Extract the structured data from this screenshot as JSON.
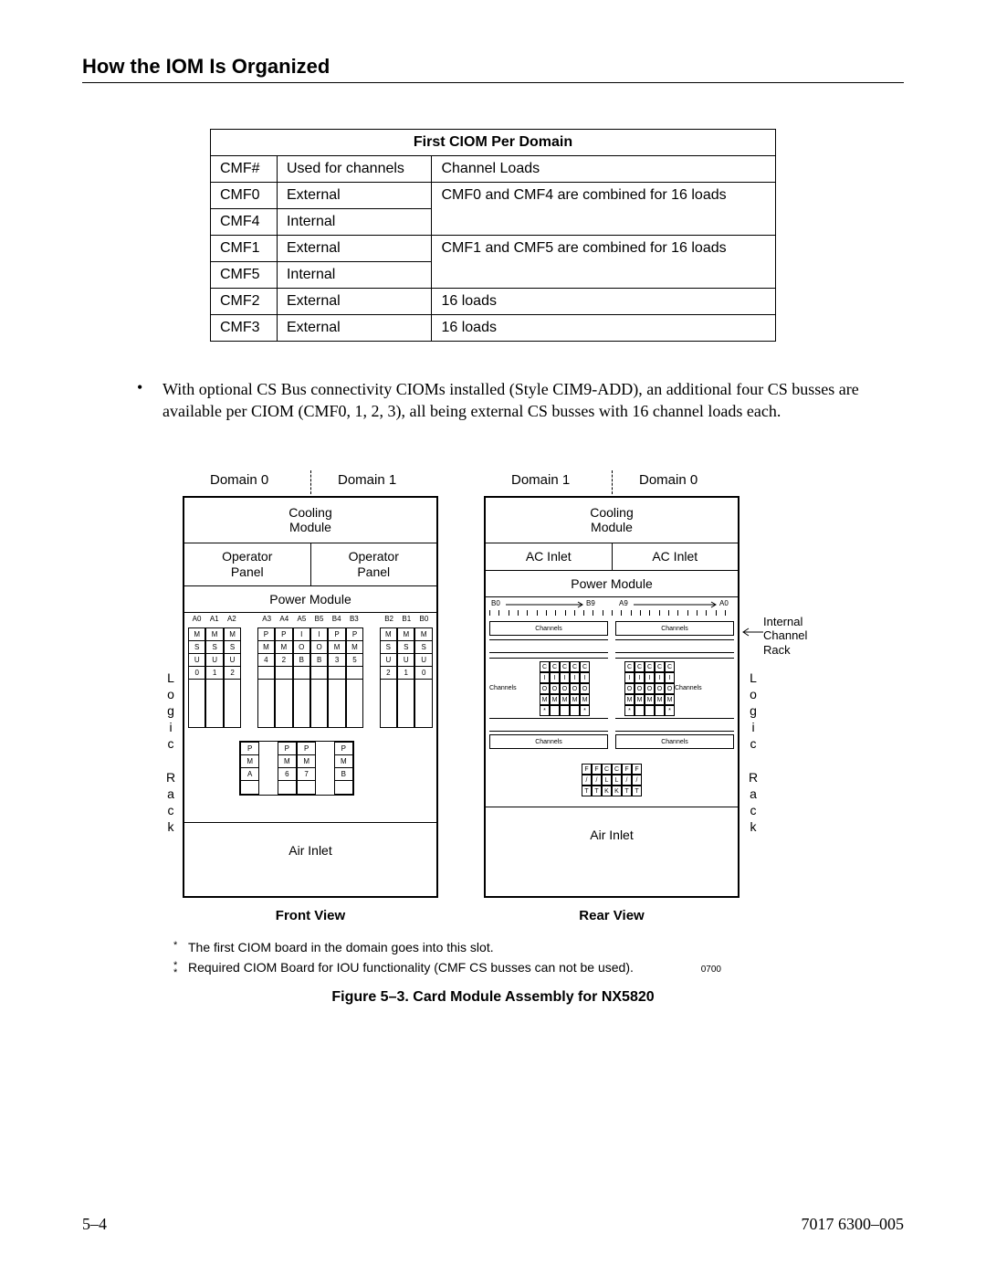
{
  "header": {
    "title": "How the IOM Is Organized"
  },
  "table": {
    "title": "First CIOM Per Domain",
    "columns": [
      "CMF#",
      "Used for channels",
      "Channel Loads"
    ],
    "rows": [
      {
        "cmf": "CMF0",
        "use": "External",
        "loads": "CMF0 and CMF4 are combined for 16 loads",
        "rowspan": 2
      },
      {
        "cmf": "CMF4",
        "use": "Internal",
        "loads": ""
      },
      {
        "cmf": "CMF1",
        "use": "External",
        "loads": "CMF1 and CMF5 are combined for 16 loads",
        "rowspan": 2
      },
      {
        "cmf": "CMF5",
        "use": "Internal",
        "loads": ""
      },
      {
        "cmf": "CMF2",
        "use": "External",
        "loads": "16 loads",
        "rowspan": 1
      },
      {
        "cmf": "CMF3",
        "use": "External",
        "loads": "16 loads",
        "rowspan": 1
      }
    ]
  },
  "bullet": {
    "text": "With optional CS Bus connectivity CIOMs installed (Style CIM9-ADD), an additional four CS busses are available per CIOM (CMF0, 1, 2, 3), all being external CS busses with 16 channel loads each."
  },
  "figure": {
    "domains": {
      "d0": "Domain 0",
      "d1": "Domain 1"
    },
    "cooling": "Cooling\nModule",
    "operator_panel": "Operator\nPanel",
    "ac_inlet": "AC Inlet",
    "power_module": "Power Module",
    "air_inlet": "Air Inlet",
    "front_view": "Front View",
    "rear_view": "Rear View",
    "logic_rack": "Logic Rack",
    "internal_channel_rack": "Internal\nChannel\nRack",
    "front_top_labels": [
      "A0",
      "A1",
      "A2",
      "",
      "A3",
      "A4",
      "A5",
      "B5",
      "B4",
      "B3",
      "",
      "B2",
      "B1",
      "B0"
    ],
    "front_slot_rows": [
      [
        "M",
        "M",
        "M",
        "",
        "P",
        "P",
        "I",
        "I",
        "P",
        "P",
        "",
        "M",
        "M",
        "M"
      ],
      [
        "S",
        "S",
        "S",
        "",
        "M",
        "M",
        "O",
        "O",
        "M",
        "M",
        "",
        "S",
        "S",
        "S"
      ],
      [
        "U",
        "U",
        "U",
        "",
        "4",
        "2",
        "B",
        "B",
        "3",
        "5",
        "",
        "U",
        "U",
        "U"
      ],
      [
        "0",
        "1",
        "2",
        "",
        "",
        "",
        "",
        "",
        "",
        "",
        "",
        "2",
        "1",
        "0"
      ]
    ],
    "front_lower_rows": [
      [
        "P",
        "",
        "P",
        "P",
        "",
        "P"
      ],
      [
        "M",
        "",
        "M",
        "M",
        "",
        "M"
      ],
      [
        "A",
        "",
        "6",
        "7",
        "",
        "B"
      ]
    ],
    "rear_top": {
      "b0": "B0",
      "b9": "B9",
      "a9": "A9",
      "a0": "A0"
    },
    "rear_channels_label": "Channels",
    "rear_ciom_cols": [
      [
        "C",
        "I",
        "O",
        "M",
        "*"
      ],
      [
        "C",
        "I",
        "O",
        "M",
        ""
      ],
      [
        "C",
        "I",
        "O",
        "M",
        ""
      ],
      [
        "C",
        "I",
        "O",
        "M",
        ""
      ],
      [
        "C",
        "I",
        "O",
        "M",
        "*"
      ]
    ],
    "rear_ciom_cols_r": [
      [
        "C",
        "I",
        "O",
        "M",
        "*"
      ],
      [
        "C",
        "I",
        "O",
        "M",
        ""
      ],
      [
        "C",
        "I",
        "O",
        "M",
        ""
      ],
      [
        "C",
        "I",
        "O",
        "M",
        ""
      ],
      [
        "C",
        "I",
        "O",
        "M",
        "*"
      ]
    ],
    "rear_bottom_grid": [
      [
        "F",
        "F",
        "C",
        "C",
        "F",
        "F"
      ],
      [
        "/",
        "/",
        "L",
        "L",
        "/",
        "/"
      ],
      [
        "T",
        "T",
        "K",
        "K",
        "T",
        "T"
      ]
    ],
    "footnotes": [
      {
        "sym": "*",
        "text": "The first CIOM board in the domain goes into this slot."
      },
      {
        "sym": "*\n*",
        "text": "Required CIOM Board for IOU functionality (CMF CS busses can not be used)."
      }
    ],
    "fig_id": "0700",
    "caption": "Figure 5–3.  Card Module Assembly for NX5820"
  },
  "footer": {
    "page": "5–4",
    "doc": "7017 6300–005"
  }
}
